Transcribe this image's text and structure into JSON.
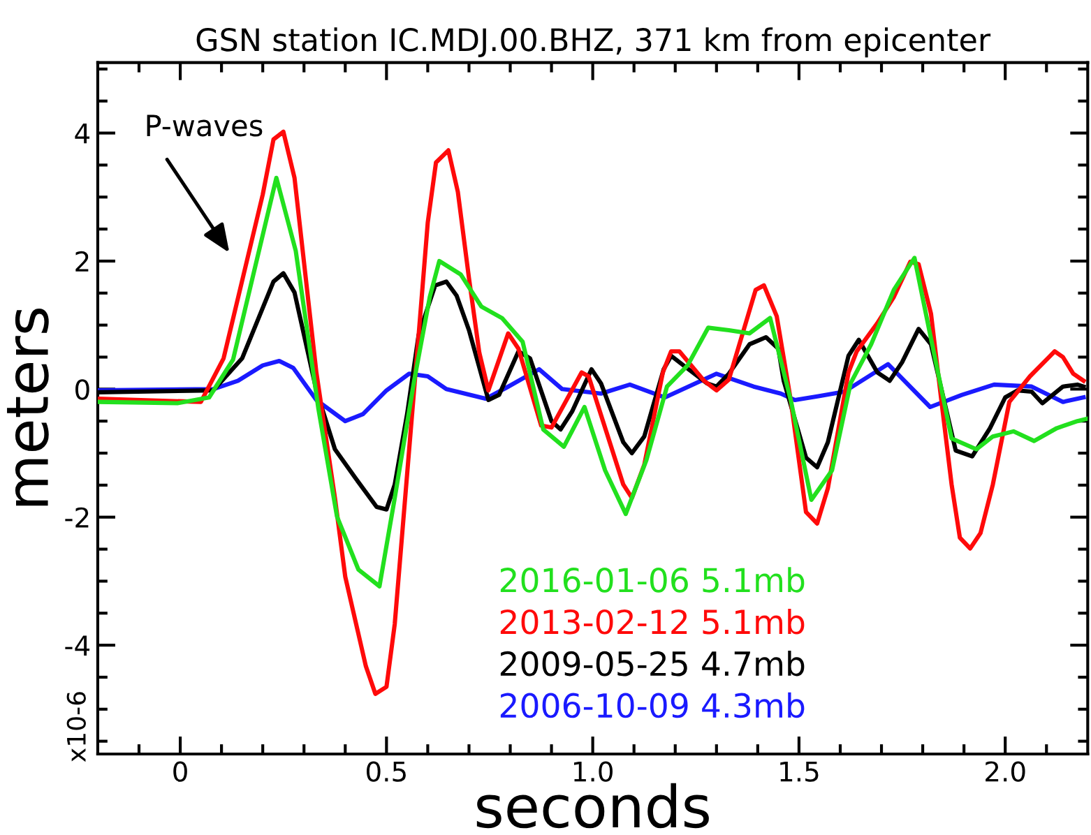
{
  "chart_data": {
    "type": "line",
    "title": "GSN station IC.MDJ.00.BHZ, 371 km from epicenter",
    "xlabel": "seconds",
    "ylabel": "meters",
    "annotations": [
      "P-waves",
      "x10-6"
    ],
    "xlim": [
      -0.2,
      2.2
    ],
    "ylim": [
      -5.7,
      5.1
    ],
    "xticks": [
      {
        "value": -0.1,
        "label": null
      },
      0,
      {
        "value": 0.1,
        "label": null
      },
      {
        "value": 0.2,
        "label": null
      },
      {
        "value": 0.3,
        "label": null
      },
      {
        "value": 0.4,
        "label": null
      },
      0.5,
      {
        "value": 0.6,
        "label": null
      },
      {
        "value": 0.7,
        "label": null
      },
      {
        "value": 0.8,
        "label": null
      },
      {
        "value": 0.9,
        "label": null
      },
      {
        "value": 1.0,
        "label": "1.0"
      },
      {
        "value": 1.1,
        "label": null
      },
      {
        "value": 1.2,
        "label": null
      },
      {
        "value": 1.3,
        "label": null
      },
      {
        "value": 1.4,
        "label": null
      },
      1.5,
      {
        "value": 1.6,
        "label": null
      },
      {
        "value": 1.7,
        "label": null
      },
      {
        "value": 1.8,
        "label": null
      },
      {
        "value": 1.9,
        "label": null
      },
      {
        "value": 2.0,
        "label": "2.0"
      },
      {
        "value": 2.1,
        "label": null
      }
    ],
    "yticks": [
      {
        "value": -5.5,
        "label": null
      },
      {
        "value": -5,
        "label": null
      },
      {
        "value": -4.5,
        "label": null
      },
      -4,
      {
        "value": -3.5,
        "label": null
      },
      {
        "value": -3,
        "label": null
      },
      {
        "value": -2.5,
        "label": null
      },
      -2,
      {
        "value": -1.5,
        "label": null
      },
      {
        "value": -1,
        "label": null
      },
      {
        "value": -0.5,
        "label": null
      },
      0,
      {
        "value": 0.5,
        "label": null
      },
      {
        "value": 1,
        "label": null
      },
      {
        "value": 1.5,
        "label": null
      },
      2,
      {
        "value": 2.5,
        "label": null
      },
      {
        "value": 3,
        "label": null
      },
      {
        "value": 3.5,
        "label": null
      },
      4,
      {
        "value": 4.5,
        "label": null
      },
      {
        "value": 5,
        "label": null
      }
    ],
    "grid": false,
    "legend": "bottom",
    "marker": "none",
    "line_style": "solid",
    "series": [
      {
        "name": "2016-01-06 5.1mb",
        "color": "#22e01e",
        "x": [
          -0.2,
          -0.007,
          0.07,
          0.128,
          0.233,
          0.28,
          0.335,
          0.38,
          0.432,
          0.483,
          0.52,
          0.567,
          0.605,
          0.628,
          0.68,
          0.73,
          0.78,
          0.83,
          0.88,
          0.93,
          0.98,
          1.03,
          1.08,
          1.13,
          1.18,
          1.23,
          1.28,
          1.33,
          1.38,
          1.43,
          1.48,
          1.53,
          1.58,
          1.625,
          1.675,
          1.73,
          1.78,
          1.82,
          1.87,
          1.93,
          1.97,
          2.02,
          2.07,
          2.125,
          2.175,
          2.2
        ],
        "values": [
          -0.2,
          -0.22,
          -0.13,
          0.46,
          3.3,
          2.16,
          -0.31,
          -1.99,
          -2.82,
          -3.08,
          -1.7,
          0.13,
          1.44,
          2.0,
          1.79,
          1.29,
          1.11,
          0.74,
          -0.63,
          -0.9,
          -0.28,
          -1.27,
          -1.95,
          -1.11,
          0.04,
          0.37,
          0.96,
          0.92,
          0.87,
          1.11,
          -0.17,
          -1.73,
          -1.27,
          0.09,
          0.7,
          1.55,
          2.05,
          0.79,
          -0.77,
          -0.94,
          -0.74,
          -0.66,
          -0.81,
          -0.61,
          -0.5,
          -0.46
        ]
      },
      {
        "name": "2013-02-12 5.1mb",
        "color": "#ff0a0a",
        "x": [
          -0.2,
          0.05,
          0.105,
          0.2,
          0.226,
          0.25,
          0.277,
          0.33,
          0.375,
          0.4,
          0.45,
          0.473,
          0.5,
          0.52,
          0.55,
          0.578,
          0.6,
          0.62,
          0.65,
          0.673,
          0.7,
          0.725,
          0.747,
          0.795,
          0.82,
          0.875,
          0.9,
          0.973,
          0.99,
          1.074,
          1.095,
          1.125,
          1.17,
          1.19,
          1.21,
          1.27,
          1.3,
          1.33,
          1.395,
          1.415,
          1.446,
          1.48,
          1.517,
          1.544,
          1.57,
          1.62,
          1.64,
          1.69,
          1.73,
          1.77,
          1.79,
          1.82,
          1.845,
          1.87,
          1.89,
          1.915,
          1.94,
          1.97,
          2.01,
          2.06,
          2.12,
          2.14,
          2.165,
          2.19
        ],
        "values": [
          -0.15,
          -0.2,
          0.48,
          3.04,
          3.9,
          4.02,
          3.3,
          0.26,
          -1.7,
          -2.93,
          -4.33,
          -4.76,
          -4.65,
          -3.67,
          -1.33,
          0.85,
          2.6,
          3.54,
          3.73,
          3.08,
          1.73,
          0.57,
          -0.02,
          0.87,
          0.63,
          -0.57,
          -0.6,
          0.26,
          0.2,
          -1.49,
          -1.7,
          -1.18,
          0.26,
          0.59,
          0.59,
          0.13,
          -0.02,
          0.15,
          1.55,
          1.62,
          1.14,
          -0.17,
          -1.92,
          -2.1,
          -1.55,
          0.26,
          0.59,
          1.03,
          1.44,
          1.99,
          1.95,
          1.18,
          -0.17,
          -1.49,
          -2.32,
          -2.49,
          -2.25,
          -1.49,
          -0.2,
          0.2,
          0.59,
          0.5,
          0.24,
          0.13
        ]
      },
      {
        "name": "2009-05-25 4.7mb",
        "color": "#000000",
        "x": [
          -0.2,
          0.08,
          0.15,
          0.226,
          0.25,
          0.277,
          0.33,
          0.375,
          0.426,
          0.476,
          0.5,
          0.52,
          0.55,
          0.578,
          0.618,
          0.645,
          0.67,
          0.7,
          0.747,
          0.773,
          0.82,
          0.848,
          0.9,
          0.922,
          0.95,
          0.997,
          1.02,
          1.074,
          1.095,
          1.125,
          1.172,
          1.19,
          1.22,
          1.277,
          1.3,
          1.33,
          1.38,
          1.42,
          1.45,
          1.463,
          1.517,
          1.544,
          1.57,
          1.62,
          1.645,
          1.69,
          1.72,
          1.75,
          1.79,
          1.82,
          1.88,
          1.92,
          1.963,
          2.0,
          2.03,
          2.064,
          2.09,
          2.14,
          2.175,
          2.19
        ],
        "values": [
          -0.05,
          -0.02,
          0.48,
          1.68,
          1.81,
          1.51,
          -0.02,
          -0.94,
          -1.4,
          -1.84,
          -1.88,
          -1.49,
          -0.39,
          0.85,
          1.62,
          1.68,
          1.46,
          0.92,
          -0.17,
          -0.09,
          0.59,
          0.48,
          -0.5,
          -0.63,
          -0.35,
          0.31,
          0.09,
          -0.83,
          -1.0,
          -0.74,
          0.31,
          0.52,
          0.37,
          0.09,
          0.04,
          0.24,
          0.7,
          0.81,
          0.63,
          0.13,
          -1.07,
          -1.22,
          -0.83,
          0.52,
          0.77,
          0.26,
          0.13,
          0.42,
          0.94,
          0.7,
          -0.96,
          -1.05,
          -0.61,
          -0.13,
          -0.02,
          -0.04,
          -0.22,
          0.04,
          0.07,
          0.04
        ]
      },
      {
        "name": "2006-10-09 4.3mb",
        "color": "#1a1aff",
        "x": [
          -0.2,
          0.08,
          0.14,
          0.2,
          0.24,
          0.274,
          0.33,
          0.4,
          0.443,
          0.5,
          0.555,
          0.6,
          0.645,
          0.74,
          0.79,
          0.87,
          0.926,
          1.02,
          1.09,
          1.175,
          1.3,
          1.39,
          1.456,
          1.49,
          1.547,
          1.61,
          1.716,
          1.818,
          1.895,
          1.973,
          2.064,
          2.14,
          2.19
        ],
        "values": [
          -0.02,
          0.0,
          0.13,
          0.37,
          0.44,
          0.33,
          -0.17,
          -0.5,
          -0.39,
          -0.02,
          0.24,
          0.2,
          0.0,
          -0.15,
          0.02,
          0.31,
          0.0,
          -0.07,
          0.07,
          -0.13,
          0.24,
          0.04,
          -0.07,
          -0.17,
          -0.11,
          -0.04,
          0.39,
          -0.28,
          -0.09,
          0.07,
          0.04,
          -0.2,
          -0.13
        ]
      }
    ]
  }
}
